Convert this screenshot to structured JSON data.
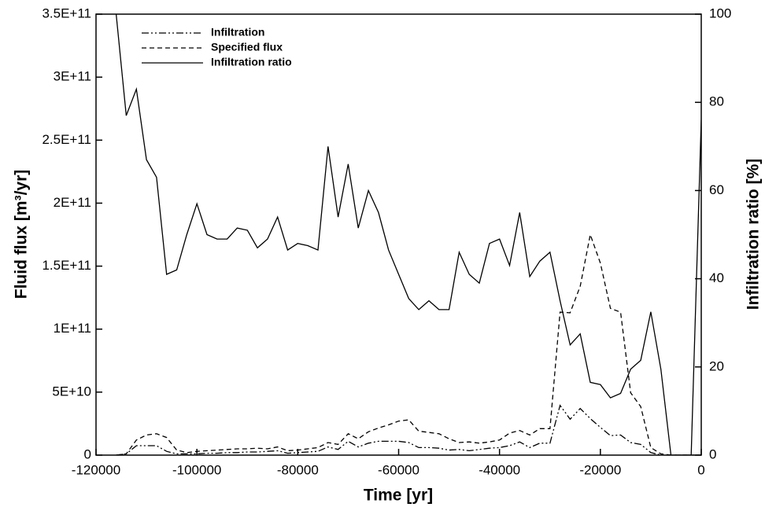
{
  "chart_data": {
    "type": "line",
    "xlabel": "Time [yr]",
    "ylabel": "Fluid flux [m³/yr]",
    "y2label": "Infiltration ratio [%]",
    "legend": "upper left",
    "x": [
      -116000,
      -114000,
      -112000,
      -110000,
      -108000,
      -106000,
      -104000,
      -102000,
      -100000,
      -98000,
      -96000,
      -94000,
      -92000,
      -90000,
      -88000,
      -86000,
      -84000,
      -82000,
      -80000,
      -78000,
      -76000,
      -74000,
      -72000,
      -70000,
      -68000,
      -66000,
      -64000,
      -62000,
      -60000,
      -58000,
      -56000,
      -54000,
      -52000,
      -50000,
      -48000,
      -46000,
      -44000,
      -42000,
      -40000,
      -38000,
      -36000,
      -34000,
      -32000,
      -30000,
      -28000,
      -26000,
      -24000,
      -22000,
      -20000,
      -18000,
      -16000,
      -14000,
      -12000,
      -10000,
      -8000,
      -6000,
      -4000,
      -2000,
      0
    ],
    "series": [
      {
        "name": "Infiltration",
        "color": "#000000",
        "linestyle": "dash-dot-dot",
        "values": [
          0,
          1000000000.0,
          7500000000.0,
          7500000000.0,
          7500000000.0,
          3000000000.0,
          1000000000.0,
          1000000000.0,
          1000000000.0,
          1500000000.0,
          1500000000.0,
          2000000000.0,
          2000000000.0,
          2500000000.0,
          2500000000.0,
          3000000000.0,
          3500000000.0,
          1500000000.0,
          2000000000.0,
          2500000000.0,
          3000000000.0,
          6500000000.0,
          4500000000.0,
          11000000000.0,
          6500000000.0,
          9500000000.0,
          11000000000.0,
          11000000000.0,
          11000000000.0,
          10000000000.0,
          6000000000.0,
          6000000000.0,
          5500000000.0,
          4000000000.0,
          4500000000.0,
          3500000000.0,
          4500000000.0,
          5500000000.0,
          6000000000.0,
          7500000000.0,
          10500000000.0,
          6000000000.0,
          9500000000.0,
          9500000000.0,
          39500000000.0,
          28500000000.0,
          37000000000.0,
          29000000000.0,
          22000000000.0,
          15500000000.0,
          16000000000.0,
          10000000000.0,
          8500000000.0,
          2000000000.0,
          0,
          0,
          0,
          0,
          0
        ]
      },
      {
        "name": "Specified flux",
        "color": "#000000",
        "linestyle": "dashed",
        "values": [
          0,
          1000000000.0,
          12000000000.0,
          16000000000.0,
          17000000000.0,
          14000000000.0,
          4000000000.0,
          2000000000.0,
          3000000000.0,
          3500000000.0,
          4000000000.0,
          4500000000.0,
          5000000000.0,
          5000000000.0,
          5500000000.0,
          5000000000.0,
          6500000000.0,
          3500000000.0,
          4000000000.0,
          5000000000.0,
          6000000000.0,
          10000000000.0,
          8500000000.0,
          17000000000.0,
          13000000000.0,
          18500000000.0,
          21500000000.0,
          24000000000.0,
          27000000000.0,
          28000000000.0,
          19000000000.0,
          18000000000.0,
          17000000000.0,
          13000000000.0,
          10000000000.0,
          10500000000.0,
          9500000000.0,
          10500000000.0,
          12000000000.0,
          17500000000.0,
          19500000000.0,
          16000000000.0,
          21000000000.0,
          21000000000.0,
          113500000000.0,
          113000000000.0,
          134000000000.0,
          175000000000.0,
          152500000000.0,
          116500000000.0,
          113500000000.0,
          49500000000.0,
          38500000000.0,
          6000000000.0,
          1000000000.0,
          0,
          0,
          0,
          0
        ]
      },
      {
        "name": "Infiltration ratio",
        "color": "#000000",
        "linestyle": "solid",
        "axis": "y2",
        "values": [
          100,
          77,
          83,
          67,
          63,
          41,
          42,
          50,
          57,
          50,
          49,
          49,
          51.5,
          51,
          47,
          49,
          54,
          46.5,
          48,
          47.5,
          46.5,
          70,
          54,
          66,
          51.5,
          60,
          55,
          46.5,
          41,
          35.5,
          33,
          35,
          33,
          33,
          46,
          41,
          39,
          48,
          49,
          43,
          55,
          40.5,
          44,
          46,
          35,
          25,
          27.5,
          16.5,
          16,
          13,
          14,
          19.5,
          21.5,
          32.5,
          19.5,
          0,
          0,
          0,
          76
        ]
      }
    ],
    "xlim": [
      -120000,
      0
    ],
    "xticks": [
      -120000,
      -100000,
      -80000,
      -60000,
      -40000,
      -20000,
      0
    ],
    "ylim": [
      0,
      350000000000.0
    ],
    "yticks": [
      0,
      {
        "value": 50000000000.0,
        "label": "5E+10"
      },
      {
        "value": 100000000000.0,
        "label": "1E+11"
      },
      {
        "value": 150000000000.0,
        "label": "1.5E+11"
      },
      {
        "value": 200000000000.0,
        "label": "2E+11"
      },
      {
        "value": 250000000000.0,
        "label": "2.5E+11"
      },
      {
        "value": 300000000000.0,
        "label": "3E+11"
      },
      {
        "value": 350000000000.0,
        "label": "3.5E+11"
      }
    ],
    "y2lim": [
      0,
      100
    ],
    "y2ticks": [
      0,
      20,
      40,
      60,
      80,
      100
    ]
  }
}
